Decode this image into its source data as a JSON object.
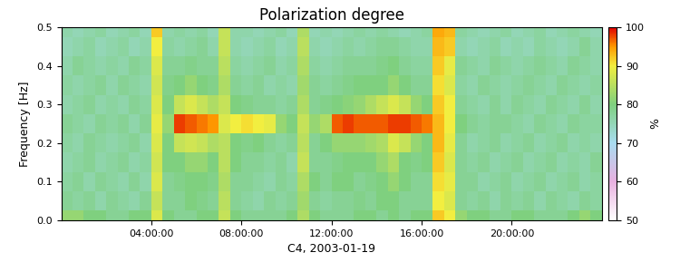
{
  "chart_data": {
    "type": "heatmap",
    "title": "Polarization degree",
    "x_label": "C4, 2003-01-19",
    "y_label": "Frequency [Hz]",
    "x": [
      0.25,
      0.75,
      1.25,
      1.75,
      2.25,
      2.75,
      3.25,
      3.75,
      4.25,
      4.75,
      5.25,
      5.75,
      6.25,
      6.75,
      7.25,
      7.75,
      8.25,
      8.75,
      9.25,
      9.75,
      10.25,
      10.75,
      11.25,
      11.75,
      12.25,
      12.75,
      13.25,
      13.75,
      14.25,
      14.75,
      15.25,
      15.75,
      16.25,
      16.75,
      17.25,
      17.75,
      18.25,
      18.75,
      19.25,
      19.75,
      20.25,
      20.75,
      21.25,
      21.75,
      22.25,
      22.75,
      23.25,
      23.75
    ],
    "y": [
      0.0,
      0.05,
      0.1,
      0.15,
      0.2,
      0.25,
      0.3,
      0.35,
      0.4,
      0.45,
      0.5
    ],
    "xlim": [
      0,
      24
    ],
    "xticks": [
      {
        "value": 4,
        "label": "04:00:00"
      },
      {
        "value": 8,
        "label": "08:00:00"
      },
      {
        "value": 12,
        "label": "12:00:00"
      },
      {
        "value": 16,
        "label": "16:00:00"
      },
      {
        "value": 20,
        "label": "20:00:00"
      }
    ],
    "ylim": [
      0.0,
      0.5
    ],
    "yticks": [
      0.0,
      0.1,
      0.2,
      0.3,
      0.4,
      0.5
    ],
    "cells": [
      [
        82,
        82,
        80,
        80,
        78,
        78,
        80,
        80,
        88,
        80,
        78,
        78,
        80,
        80,
        86,
        80,
        78,
        78,
        78,
        78,
        80,
        84,
        80,
        78,
        78,
        78,
        80,
        80,
        78,
        80,
        78,
        80,
        80,
        92,
        90,
        82,
        80,
        80,
        78,
        78,
        80,
        80,
        78,
        78,
        78,
        80,
        82,
        80
      ],
      [
        78,
        77,
        78,
        76,
        78,
        77,
        76,
        78,
        86,
        78,
        78,
        80,
        79,
        78,
        85,
        78,
        77,
        76,
        78,
        77,
        78,
        83,
        78,
        77,
        78,
        78,
        79,
        78,
        80,
        80,
        78,
        78,
        78,
        90,
        88,
        78,
        77,
        78,
        76,
        78,
        77,
        78,
        76,
        78,
        77,
        76,
        78,
        77
      ],
      [
        77,
        78,
        76,
        78,
        77,
        76,
        78,
        76,
        88,
        78,
        79,
        80,
        80,
        79,
        84,
        78,
        78,
        77,
        76,
        78,
        77,
        84,
        80,
        78,
        80,
        80,
        78,
        79,
        80,
        82,
        80,
        78,
        78,
        91,
        89,
        78,
        78,
        76,
        77,
        78,
        76,
        77,
        78,
        76,
        77,
        78,
        76,
        77
      ],
      [
        76,
        77,
        78,
        76,
        77,
        78,
        76,
        77,
        87,
        80,
        80,
        82,
        82,
        80,
        85,
        80,
        78,
        78,
        77,
        78,
        76,
        86,
        78,
        78,
        79,
        80,
        80,
        80,
        82,
        84,
        80,
        79,
        80,
        92,
        88,
        78,
        77,
        78,
        76,
        77,
        78,
        76,
        77,
        78,
        76,
        77,
        76,
        78
      ],
      [
        77,
        76,
        78,
        77,
        76,
        77,
        78,
        76,
        88,
        80,
        86,
        87,
        86,
        84,
        85,
        80,
        79,
        80,
        78,
        77,
        78,
        85,
        78,
        80,
        82,
        82,
        82,
        83,
        84,
        88,
        86,
        82,
        80,
        93,
        89,
        78,
        76,
        77,
        78,
        76,
        77,
        78,
        76,
        77,
        78,
        76,
        77,
        76
      ],
      [
        78,
        77,
        76,
        78,
        77,
        78,
        76,
        78,
        89,
        82,
        98,
        97,
        96,
        95,
        88,
        90,
        91,
        90,
        89,
        82,
        80,
        86,
        82,
        84,
        97,
        98,
        97,
        97,
        97,
        98,
        98,
        97,
        96,
        93,
        90,
        80,
        78,
        77,
        78,
        78,
        77,
        76,
        78,
        77,
        76,
        78,
        77,
        77
      ],
      [
        76,
        77,
        78,
        76,
        77,
        76,
        78,
        77,
        88,
        80,
        86,
        88,
        86,
        84,
        86,
        80,
        79,
        78,
        78,
        77,
        78,
        84,
        78,
        79,
        80,
        81,
        82,
        84,
        86,
        88,
        86,
        82,
        80,
        92,
        90,
        78,
        77,
        76,
        78,
        76,
        78,
        77,
        76,
        78,
        77,
        76,
        78,
        76
      ],
      [
        77,
        76,
        77,
        78,
        76,
        78,
        77,
        76,
        87,
        79,
        80,
        82,
        80,
        79,
        84,
        78,
        77,
        78,
        76,
        77,
        76,
        83,
        78,
        77,
        78,
        79,
        80,
        80,
        80,
        82,
        80,
        78,
        78,
        91,
        88,
        77,
        76,
        78,
        77,
        76,
        77,
        78,
        77,
        76,
        78,
        77,
        76,
        77
      ],
      [
        76,
        78,
        77,
        76,
        77,
        76,
        78,
        77,
        88,
        78,
        78,
        79,
        78,
        78,
        85,
        77,
        76,
        77,
        78,
        76,
        77,
        84,
        77,
        76,
        77,
        78,
        78,
        78,
        79,
        80,
        78,
        77,
        77,
        92,
        89,
        78,
        77,
        76,
        78,
        77,
        76,
        77,
        78,
        77,
        76,
        78,
        77,
        76
      ],
      [
        75,
        76,
        77,
        75,
        76,
        77,
        75,
        76,
        90,
        77,
        76,
        77,
        78,
        76,
        86,
        76,
        75,
        76,
        77,
        75,
        76,
        85,
        76,
        75,
        76,
        77,
        76,
        77,
        78,
        78,
        77,
        76,
        76,
        93,
        92,
        76,
        75,
        76,
        77,
        75,
        76,
        75,
        77,
        76,
        75,
        76,
        78,
        76
      ],
      [
        76,
        75,
        76,
        77,
        75,
        76,
        77,
        75,
        92,
        76,
        77,
        76,
        77,
        75,
        86,
        76,
        76,
        75,
        76,
        77,
        75,
        84,
        75,
        76,
        75,
        76,
        77,
        76,
        77,
        76,
        75,
        76,
        77,
        94,
        93,
        77,
        76,
        75,
        76,
        77,
        75,
        76,
        77,
        75,
        76,
        77,
        76,
        75
      ]
    ],
    "colorbar": {
      "range": [
        50,
        100
      ],
      "ticks": [
        50,
        60,
        70,
        80,
        90,
        100
      ],
      "label": "%"
    }
  }
}
